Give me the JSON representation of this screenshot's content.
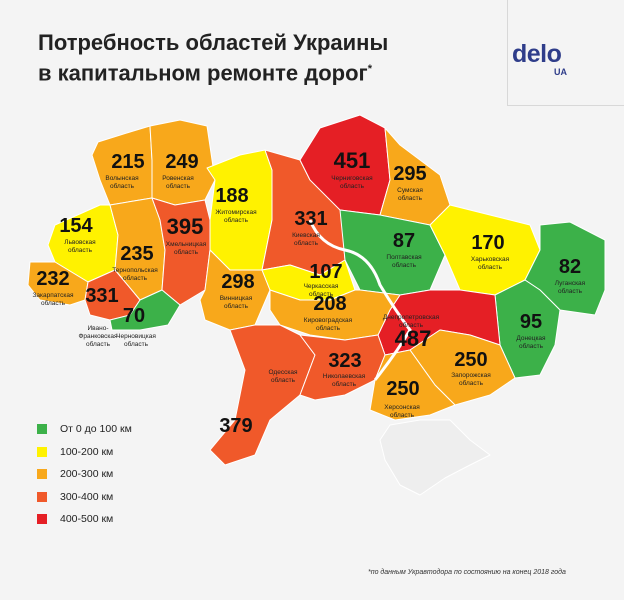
{
  "title": {
    "line1": "Потребность областей Украины",
    "line2": "в капитальном ремонте дорог",
    "asterisk": "*"
  },
  "logo": {
    "word": "delo",
    "suffix": "UA"
  },
  "colors": {
    "green": "#3cb149",
    "yellow": "#fff200",
    "orange": "#f8a81b",
    "darkorange": "#f0592a",
    "red": "#e51f25",
    "crimea": "#eeeeee",
    "background": "#f4f4f4"
  },
  "regions": [
    {
      "id": "volyn",
      "value": "215",
      "name": [
        "Волынская",
        "область"
      ],
      "color": "orange"
    },
    {
      "id": "rivne",
      "value": "249",
      "name": [
        "Ровенская",
        "область"
      ],
      "color": "orange"
    },
    {
      "id": "zhytomyr",
      "value": "188",
      "name": [
        "Житомирская",
        "область"
      ],
      "color": "yellow"
    },
    {
      "id": "chernihiv",
      "value": "451",
      "name": [
        "Черниговская",
        "область"
      ],
      "color": "red"
    },
    {
      "id": "sumy",
      "value": "295",
      "name": [
        "Сумская",
        "область"
      ],
      "color": "orange"
    },
    {
      "id": "lviv",
      "value": "154",
      "name": [
        "Львовская",
        "область"
      ],
      "color": "yellow"
    },
    {
      "id": "khmelnytskyi",
      "value": "395",
      "name": [
        "Хмельницкая",
        "область"
      ],
      "color": "darkorange"
    },
    {
      "id": "kyiv",
      "value": "331",
      "name": [
        "Киевская",
        "область"
      ],
      "color": "darkorange"
    },
    {
      "id": "poltava",
      "value": "87",
      "name": [
        "Полтавская",
        "область"
      ],
      "color": "green"
    },
    {
      "id": "kharkiv",
      "value": "170",
      "name": [
        "Харьковская",
        "область"
      ],
      "color": "yellow"
    },
    {
      "id": "ternopil",
      "value": "235",
      "name": [
        "Тернопольская",
        "область"
      ],
      "color": "orange"
    },
    {
      "id": "zakarpattia",
      "value": "232",
      "name": [
        "Закарпатская",
        "область"
      ],
      "color": "orange"
    },
    {
      "id": "ivano",
      "value": "331",
      "name": [
        "Ивано-",
        "Франковская",
        "область"
      ],
      "color": "darkorange"
    },
    {
      "id": "chernivtsi",
      "value": "70",
      "name": [
        "Черновицкая",
        "область"
      ],
      "color": "green"
    },
    {
      "id": "vinnytsia",
      "value": "298",
      "name": [
        "Винницкая",
        "область"
      ],
      "color": "orange"
    },
    {
      "id": "cherkasy",
      "value": "107",
      "name": [
        "Черкасская",
        "область"
      ],
      "color": "yellow"
    },
    {
      "id": "kirovohrad",
      "value": "208",
      "name": [
        "Кировоградская",
        "область"
      ],
      "color": "orange"
    },
    {
      "id": "dnipro",
      "value": "487",
      "name": [
        "Днепропетровская",
        "область"
      ],
      "color": "red"
    },
    {
      "id": "luhansk",
      "value": "82",
      "name": [
        "Луганская",
        "область"
      ],
      "color": "green"
    },
    {
      "id": "donetsk",
      "value": "95",
      "name": [
        "Донецкая",
        "область"
      ],
      "color": "green"
    },
    {
      "id": "odesa",
      "value": "379",
      "name": [
        "Одесская",
        "область"
      ],
      "color": "darkorange"
    },
    {
      "id": "mykolaiv",
      "value": "323",
      "name": [
        "Николаевская",
        "область"
      ],
      "color": "darkorange"
    },
    {
      "id": "zaporizhzhia",
      "value": "250",
      "name": [
        "Запорожская",
        "область"
      ],
      "color": "orange"
    },
    {
      "id": "kherson",
      "value": "250",
      "name": [
        "Херсонская",
        "область"
      ],
      "color": "orange"
    }
  ],
  "legend": [
    {
      "label": "От 0 до 100 км",
      "color": "#3cb149"
    },
    {
      "label": "100-200 км",
      "color": "#fff200"
    },
    {
      "label": "200-300 км",
      "color": "#f8a81b"
    },
    {
      "label": "300-400 км",
      "color": "#f0592a"
    },
    {
      "label": "400-500 км",
      "color": "#e51f25"
    }
  ],
  "footnote": "*по данным Укравтодора по состоянию на конец 2018 года"
}
